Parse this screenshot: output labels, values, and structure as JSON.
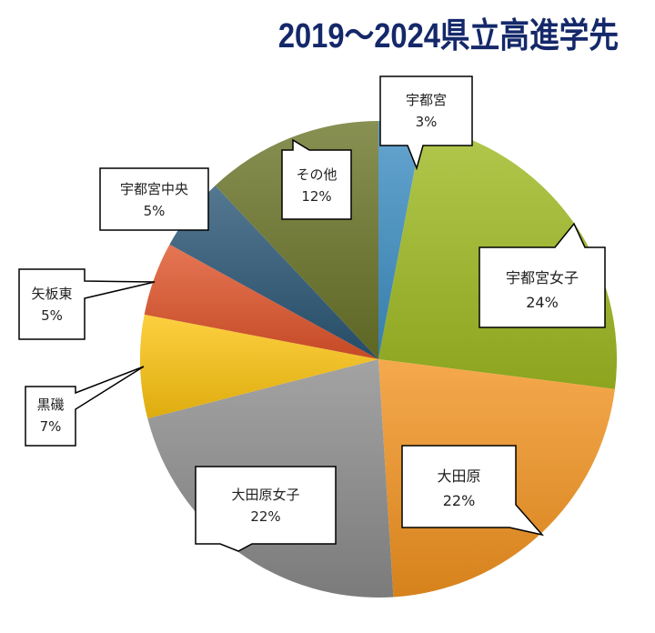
{
  "chart_data": {
    "type": "pie",
    "title": "2019～2024県立高進学先",
    "start_angle": "top",
    "direction": "clockwise",
    "slices": [
      {
        "name": "宇都宮",
        "value": 3,
        "label": "3%",
        "color": "#3f8fc4"
      },
      {
        "name": "宇都宮女子",
        "value": 24,
        "label": "24%",
        "color": "#9fba22"
      },
      {
        "name": "大田原",
        "value": 22,
        "label": "22%",
        "color": "#f39420"
      },
      {
        "name": "大田原女子",
        "value": 22,
        "label": "22%",
        "color": "#8c8c8c"
      },
      {
        "name": "黒磯",
        "value": 7,
        "label": "7%",
        "color": "#fcc410"
      },
      {
        "name": "矢板東",
        "value": 5,
        "label": "5%",
        "color": "#e0542a"
      },
      {
        "name": "宇都宮中央",
        "value": 5,
        "label": "5%",
        "color": "#2b5675"
      },
      {
        "name": "その他",
        "value": 12,
        "label": "12%",
        "color": "#6a7428"
      }
    ]
  }
}
